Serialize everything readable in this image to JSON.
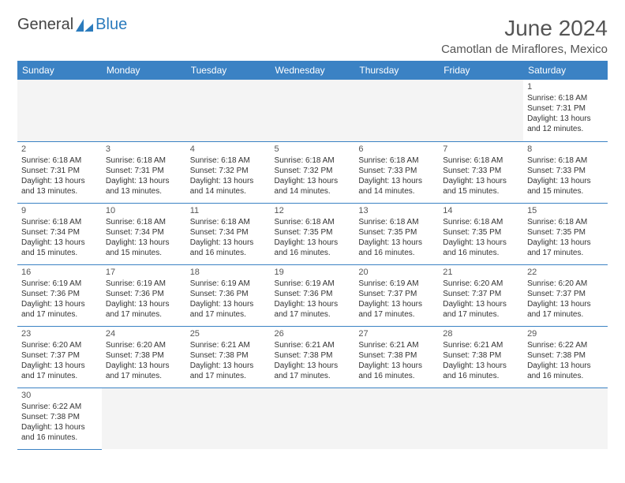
{
  "logo": {
    "general": "General",
    "blue": "Blue",
    "icon_color": "#2b7bbd"
  },
  "header": {
    "month_title": "June 2024",
    "location": "Camotlan de Miraflores, Mexico"
  },
  "colors": {
    "header_bg": "#3b82c4",
    "header_text": "#ffffff",
    "cell_border": "#3b82c4",
    "empty_bg": "#f4f4f4"
  },
  "weekdays": [
    "Sunday",
    "Monday",
    "Tuesday",
    "Wednesday",
    "Thursday",
    "Friday",
    "Saturday"
  ],
  "weeks": [
    [
      null,
      null,
      null,
      null,
      null,
      null,
      {
        "n": "1",
        "sr": "Sunrise: 6:18 AM",
        "ss": "Sunset: 7:31 PM",
        "dl": "Daylight: 13 hours and 12 minutes."
      }
    ],
    [
      {
        "n": "2",
        "sr": "Sunrise: 6:18 AM",
        "ss": "Sunset: 7:31 PM",
        "dl": "Daylight: 13 hours and 13 minutes."
      },
      {
        "n": "3",
        "sr": "Sunrise: 6:18 AM",
        "ss": "Sunset: 7:31 PM",
        "dl": "Daylight: 13 hours and 13 minutes."
      },
      {
        "n": "4",
        "sr": "Sunrise: 6:18 AM",
        "ss": "Sunset: 7:32 PM",
        "dl": "Daylight: 13 hours and 14 minutes."
      },
      {
        "n": "5",
        "sr": "Sunrise: 6:18 AM",
        "ss": "Sunset: 7:32 PM",
        "dl": "Daylight: 13 hours and 14 minutes."
      },
      {
        "n": "6",
        "sr": "Sunrise: 6:18 AM",
        "ss": "Sunset: 7:33 PM",
        "dl": "Daylight: 13 hours and 14 minutes."
      },
      {
        "n": "7",
        "sr": "Sunrise: 6:18 AM",
        "ss": "Sunset: 7:33 PM",
        "dl": "Daylight: 13 hours and 15 minutes."
      },
      {
        "n": "8",
        "sr": "Sunrise: 6:18 AM",
        "ss": "Sunset: 7:33 PM",
        "dl": "Daylight: 13 hours and 15 minutes."
      }
    ],
    [
      {
        "n": "9",
        "sr": "Sunrise: 6:18 AM",
        "ss": "Sunset: 7:34 PM",
        "dl": "Daylight: 13 hours and 15 minutes."
      },
      {
        "n": "10",
        "sr": "Sunrise: 6:18 AM",
        "ss": "Sunset: 7:34 PM",
        "dl": "Daylight: 13 hours and 15 minutes."
      },
      {
        "n": "11",
        "sr": "Sunrise: 6:18 AM",
        "ss": "Sunset: 7:34 PM",
        "dl": "Daylight: 13 hours and 16 minutes."
      },
      {
        "n": "12",
        "sr": "Sunrise: 6:18 AM",
        "ss": "Sunset: 7:35 PM",
        "dl": "Daylight: 13 hours and 16 minutes."
      },
      {
        "n": "13",
        "sr": "Sunrise: 6:18 AM",
        "ss": "Sunset: 7:35 PM",
        "dl": "Daylight: 13 hours and 16 minutes."
      },
      {
        "n": "14",
        "sr": "Sunrise: 6:18 AM",
        "ss": "Sunset: 7:35 PM",
        "dl": "Daylight: 13 hours and 16 minutes."
      },
      {
        "n": "15",
        "sr": "Sunrise: 6:18 AM",
        "ss": "Sunset: 7:35 PM",
        "dl": "Daylight: 13 hours and 17 minutes."
      }
    ],
    [
      {
        "n": "16",
        "sr": "Sunrise: 6:19 AM",
        "ss": "Sunset: 7:36 PM",
        "dl": "Daylight: 13 hours and 17 minutes."
      },
      {
        "n": "17",
        "sr": "Sunrise: 6:19 AM",
        "ss": "Sunset: 7:36 PM",
        "dl": "Daylight: 13 hours and 17 minutes."
      },
      {
        "n": "18",
        "sr": "Sunrise: 6:19 AM",
        "ss": "Sunset: 7:36 PM",
        "dl": "Daylight: 13 hours and 17 minutes."
      },
      {
        "n": "19",
        "sr": "Sunrise: 6:19 AM",
        "ss": "Sunset: 7:36 PM",
        "dl": "Daylight: 13 hours and 17 minutes."
      },
      {
        "n": "20",
        "sr": "Sunrise: 6:19 AM",
        "ss": "Sunset: 7:37 PM",
        "dl": "Daylight: 13 hours and 17 minutes."
      },
      {
        "n": "21",
        "sr": "Sunrise: 6:20 AM",
        "ss": "Sunset: 7:37 PM",
        "dl": "Daylight: 13 hours and 17 minutes."
      },
      {
        "n": "22",
        "sr": "Sunrise: 6:20 AM",
        "ss": "Sunset: 7:37 PM",
        "dl": "Daylight: 13 hours and 17 minutes."
      }
    ],
    [
      {
        "n": "23",
        "sr": "Sunrise: 6:20 AM",
        "ss": "Sunset: 7:37 PM",
        "dl": "Daylight: 13 hours and 17 minutes."
      },
      {
        "n": "24",
        "sr": "Sunrise: 6:20 AM",
        "ss": "Sunset: 7:38 PM",
        "dl": "Daylight: 13 hours and 17 minutes."
      },
      {
        "n": "25",
        "sr": "Sunrise: 6:21 AM",
        "ss": "Sunset: 7:38 PM",
        "dl": "Daylight: 13 hours and 17 minutes."
      },
      {
        "n": "26",
        "sr": "Sunrise: 6:21 AM",
        "ss": "Sunset: 7:38 PM",
        "dl": "Daylight: 13 hours and 17 minutes."
      },
      {
        "n": "27",
        "sr": "Sunrise: 6:21 AM",
        "ss": "Sunset: 7:38 PM",
        "dl": "Daylight: 13 hours and 16 minutes."
      },
      {
        "n": "28",
        "sr": "Sunrise: 6:21 AM",
        "ss": "Sunset: 7:38 PM",
        "dl": "Daylight: 13 hours and 16 minutes."
      },
      {
        "n": "29",
        "sr": "Sunrise: 6:22 AM",
        "ss": "Sunset: 7:38 PM",
        "dl": "Daylight: 13 hours and 16 minutes."
      }
    ],
    [
      {
        "n": "30",
        "sr": "Sunrise: 6:22 AM",
        "ss": "Sunset: 7:38 PM",
        "dl": "Daylight: 13 hours and 16 minutes."
      },
      null,
      null,
      null,
      null,
      null,
      null
    ]
  ]
}
